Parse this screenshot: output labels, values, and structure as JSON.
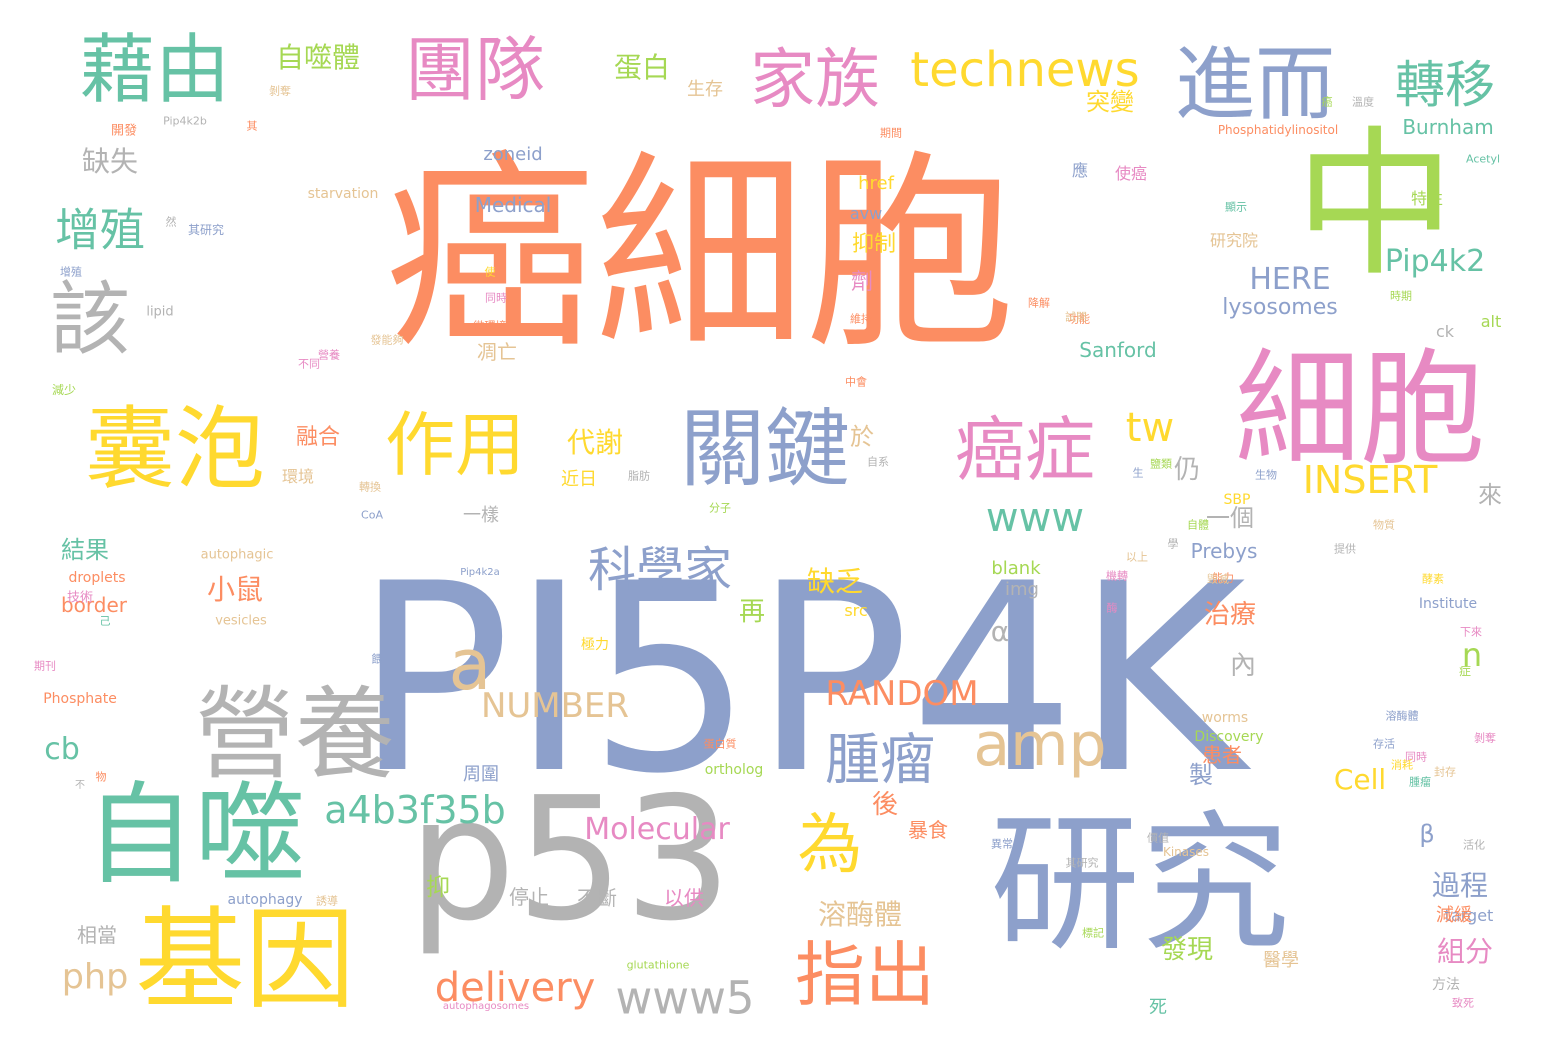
{
  "palette": {
    "blue": "#8da0cb",
    "orange": "#fc8d62",
    "green": "#66c2a5",
    "pink": "#e78ac3",
    "lime": "#a6d854",
    "yellow": "#ffd92f",
    "tan": "#e5c494",
    "gray": "#b3b3b3"
  },
  "words": [
    {
      "text": "PI5P4K",
      "color": "blue"
    },
    {
      "text": "癌細胞",
      "color": "orange"
    },
    {
      "text": "p53",
      "color": "gray"
    },
    {
      "text": "研究",
      "color": "blue"
    },
    {
      "text": "中",
      "color": "lime"
    },
    {
      "text": "細胞",
      "color": "pink"
    },
    {
      "text": "自噬",
      "color": "green"
    },
    {
      "text": "基因",
      "color": "yellow"
    },
    {
      "text": "營養",
      "color": "gray"
    },
    {
      "text": "囊泡",
      "color": "yellow"
    },
    {
      "text": "關鍵",
      "color": "blue"
    },
    {
      "text": "進而",
      "color": "blue"
    },
    {
      "text": "藉由",
      "color": "green"
    },
    {
      "text": "團隊",
      "color": "pink"
    },
    {
      "text": "家族",
      "color": "pink"
    },
    {
      "text": "該",
      "color": "gray"
    },
    {
      "text": "作用",
      "color": "yellow"
    },
    {
      "text": "癌症",
      "color": "pink"
    },
    {
      "text": "指出",
      "color": "orange"
    },
    {
      "text": "為",
      "color": "yellow"
    },
    {
      "text": "amp",
      "color": "tan"
    },
    {
      "text": "technews",
      "color": "yellow"
    },
    {
      "text": "a",
      "color": "tan"
    },
    {
      "text": "腫瘤",
      "color": "blue"
    },
    {
      "text": "科學家",
      "color": "blue"
    },
    {
      "text": "轉移",
      "color": "green"
    },
    {
      "text": "增殖",
      "color": "green"
    },
    {
      "text": "www",
      "color": "green"
    },
    {
      "text": "www5",
      "color": "gray"
    },
    {
      "text": "a4b3f35b",
      "color": "green"
    },
    {
      "text": "tw",
      "color": "yellow"
    },
    {
      "text": "delivery",
      "color": "orange"
    },
    {
      "text": "INSERT",
      "color": "yellow"
    },
    {
      "text": "RANDOM",
      "color": "orange"
    },
    {
      "text": "NUMBER",
      "color": "tan"
    },
    {
      "text": "HERE",
      "color": "blue"
    },
    {
      "text": "Pip4k2",
      "color": "green"
    },
    {
      "text": "Molecular",
      "color": "pink"
    },
    {
      "text": "php",
      "color": "tan"
    },
    {
      "text": "cb",
      "color": "green"
    },
    {
      "text": "n",
      "color": "lime"
    },
    {
      "text": "Cell",
      "color": "yellow"
    },
    {
      "text": "自噬體",
      "color": "lime"
    },
    {
      "text": "蛋白",
      "color": "lime"
    },
    {
      "text": "缺失",
      "color": "gray"
    },
    {
      "text": "突變",
      "color": "yellow"
    },
    {
      "text": "溶酶體",
      "color": "tan"
    },
    {
      "text": "過程",
      "color": "blue"
    },
    {
      "text": "組分",
      "color": "pink"
    },
    {
      "text": "發現",
      "color": "lime"
    },
    {
      "text": "代謝",
      "color": "yellow"
    },
    {
      "text": "小鼠",
      "color": "orange"
    },
    {
      "text": "缺乏",
      "color": "yellow"
    },
    {
      "text": "治療",
      "color": "orange"
    },
    {
      "text": "結果",
      "color": "green"
    },
    {
      "text": "於",
      "color": "tan"
    },
    {
      "text": "仍",
      "color": "gray"
    },
    {
      "text": "再",
      "color": "lime"
    },
    {
      "text": "α",
      "color": "gray"
    },
    {
      "text": "內",
      "color": "gray"
    },
    {
      "text": "後",
      "color": "orange"
    },
    {
      "text": "製",
      "color": "blue"
    },
    {
      "text": "一個",
      "color": "gray"
    },
    {
      "text": "β",
      "color": "blue"
    },
    {
      "text": "來",
      "color": "gray"
    },
    {
      "text": "抑",
      "color": "lime"
    },
    {
      "text": "lysosomes",
      "color": "blue"
    },
    {
      "text": "Sanford",
      "color": "green"
    },
    {
      "text": "Burnham",
      "color": "green"
    },
    {
      "text": "Prebys",
      "color": "blue"
    },
    {
      "text": "border",
      "color": "orange"
    },
    {
      "text": "zoneid",
      "color": "blue"
    },
    {
      "text": "Medical",
      "color": "blue"
    },
    {
      "text": "抑制",
      "color": "yellow"
    },
    {
      "text": "劑",
      "color": "pink"
    },
    {
      "text": "融合",
      "color": "orange"
    },
    {
      "text": "凋亡",
      "color": "tan"
    },
    {
      "text": "生存",
      "color": "tan"
    },
    {
      "text": "相當",
      "color": "gray"
    },
    {
      "text": "停止",
      "color": "gray"
    },
    {
      "text": "不斷",
      "color": "gray"
    },
    {
      "text": "以供",
      "color": "pink"
    },
    {
      "text": "周圍",
      "color": "blue"
    },
    {
      "text": "近日",
      "color": "yellow"
    },
    {
      "text": "一樣",
      "color": "gray"
    },
    {
      "text": "href",
      "color": "yellow"
    },
    {
      "text": "avw",
      "color": "blue"
    },
    {
      "text": "alt",
      "color": "lime"
    },
    {
      "text": "ck",
      "color": "gray"
    },
    {
      "text": "blank",
      "color": "lime"
    },
    {
      "text": "img",
      "color": "gray"
    },
    {
      "text": "src",
      "color": "yellow"
    },
    {
      "text": "SBP",
      "color": "yellow"
    },
    {
      "text": "Institute",
      "color": "blue"
    },
    {
      "text": "Discovery",
      "color": "lime"
    },
    {
      "text": "target",
      "color": "blue"
    },
    {
      "text": "autophagy",
      "color": "blue"
    },
    {
      "text": "ortholog",
      "color": "lime"
    },
    {
      "text": "worms",
      "color": "tan"
    },
    {
      "text": "Phosphate",
      "color": "orange"
    },
    {
      "text": "droplets",
      "color": "orange"
    },
    {
      "text": "autophagic",
      "color": "tan"
    },
    {
      "text": "vesicles",
      "color": "tan"
    },
    {
      "text": "starvation",
      "color": "tan"
    },
    {
      "text": "Phosphatidylinositol",
      "color": "orange"
    },
    {
      "text": "Pip4k2b",
      "color": "gray"
    },
    {
      "text": "Acetyl",
      "color": "green"
    },
    {
      "text": "lipid",
      "color": "gray"
    },
    {
      "text": "Kinases",
      "color": "tan"
    },
    {
      "text": "CoA",
      "color": "blue"
    },
    {
      "text": "glutathione",
      "color": "lime"
    },
    {
      "text": "autophagosomes",
      "color": "pink"
    },
    {
      "text": "Pip4k2a",
      "color": "blue"
    },
    {
      "text": "患者",
      "color": "orange"
    },
    {
      "text": "暴食",
      "color": "orange"
    },
    {
      "text": "醫學",
      "color": "tan"
    },
    {
      "text": "減緩",
      "color": "orange"
    },
    {
      "text": "方法",
      "color": "gray"
    },
    {
      "text": "死",
      "color": "green"
    },
    {
      "text": "研究院",
      "color": "tan"
    },
    {
      "text": "特性",
      "color": "lime"
    },
    {
      "text": "使癌",
      "color": "pink"
    },
    {
      "text": "應",
      "color": "blue"
    },
    {
      "text": "環境",
      "color": "tan"
    },
    {
      "text": "技術",
      "color": "pink"
    },
    {
      "text": "開發",
      "color": "orange"
    },
    {
      "text": "剝奪",
      "color": "tan"
    },
    {
      "text": "顯示",
      "color": "green"
    },
    {
      "text": "期間",
      "color": "orange"
    },
    {
      "text": "其研究",
      "color": "blue"
    },
    {
      "text": "增殖",
      "color": "blue"
    },
    {
      "text": "使",
      "color": "yellow"
    },
    {
      "text": "同時",
      "color": "pink"
    },
    {
      "text": "不同",
      "color": "pink"
    },
    {
      "text": "期刊",
      "color": "pink"
    },
    {
      "text": "降解",
      "color": "orange"
    },
    {
      "text": "維持",
      "color": "orange"
    },
    {
      "text": "營養",
      "color": "pink"
    },
    {
      "text": "功能",
      "color": "orange"
    },
    {
      "text": "時期",
      "color": "lime"
    },
    {
      "text": "生物",
      "color": "blue"
    },
    {
      "text": "自體",
      "color": "lime"
    },
    {
      "text": "能力",
      "color": "orange"
    },
    {
      "text": "極力",
      "color": "yellow"
    },
    {
      "text": "提供",
      "color": "gray"
    },
    {
      "text": "異常",
      "color": "blue"
    },
    {
      "text": "分子",
      "color": "lime"
    },
    {
      "text": "物質",
      "color": "tan"
    },
    {
      "text": "活化",
      "color": "gray"
    },
    {
      "text": "誘導",
      "color": "tan"
    },
    {
      "text": "症",
      "color": "lime"
    },
    {
      "text": "不",
      "color": "gray"
    },
    {
      "text": "下來",
      "color": "pink"
    },
    {
      "text": "存活",
      "color": "blue"
    },
    {
      "text": "封存",
      "color": "tan"
    },
    {
      "text": "致死",
      "color": "pink"
    },
    {
      "text": "以上",
      "color": "tan"
    },
    {
      "text": "己",
      "color": "green"
    },
    {
      "text": "其",
      "color": "orange"
    },
    {
      "text": "然",
      "color": "gray"
    },
    {
      "text": "中會",
      "color": "orange"
    },
    {
      "text": "發能夠",
      "color": "tan"
    },
    {
      "text": "減少",
      "color": "lime"
    },
    {
      "text": "試開",
      "color": "tan"
    },
    {
      "text": "自系",
      "color": "gray"
    },
    {
      "text": "同時",
      "color": "pink"
    },
    {
      "text": "微環境",
      "color": "orange"
    },
    {
      "text": "餵",
      "color": "blue"
    },
    {
      "text": "物",
      "color": "orange"
    },
    {
      "text": "蛋白質",
      "color": "orange"
    },
    {
      "text": "脂肪",
      "color": "gray"
    },
    {
      "text": "酶",
      "color": "pink"
    },
    {
      "text": "生",
      "color": "blue"
    },
    {
      "text": "學",
      "color": "gray"
    },
    {
      "text": "價值",
      "color": "gray"
    },
    {
      "text": "癌",
      "color": "lime"
    },
    {
      "text": "溫度",
      "color": "gray"
    },
    {
      "text": "剝奪",
      "color": "pink"
    },
    {
      "text": "酵素",
      "color": "yellow"
    },
    {
      "text": "毀滅",
      "color": "tan"
    },
    {
      "text": "鹽類",
      "color": "lime"
    },
    {
      "text": "機轉",
      "color": "pink"
    },
    {
      "text": "轉換",
      "color": "tan"
    },
    {
      "text": "其研究",
      "color": "gray"
    },
    {
      "text": "溶酶體",
      "color": "blue"
    },
    {
      "text": "標記",
      "color": "lime"
    },
    {
      "text": "腫瘤",
      "color": "green"
    },
    {
      "text": "消耗",
      "color": "yellow"
    },
    {
      "text": "組成",
      "color": "yellow"
    },
    {
      "text": "發展",
      "color": "orange"
    },
    {
      "text": "因",
      "color": "pink"
    },
    {
      "text": "應用",
      "color": "orange"
    },
    {
      "text": "死亡",
      "color": "gray"
    },
    {
      "text": "顯著",
      "color": "green"
    },
    {
      "text": "發現",
      "color": "pink"
    },
    {
      "text": "研發",
      "color": "pink"
    }
  ]
}
